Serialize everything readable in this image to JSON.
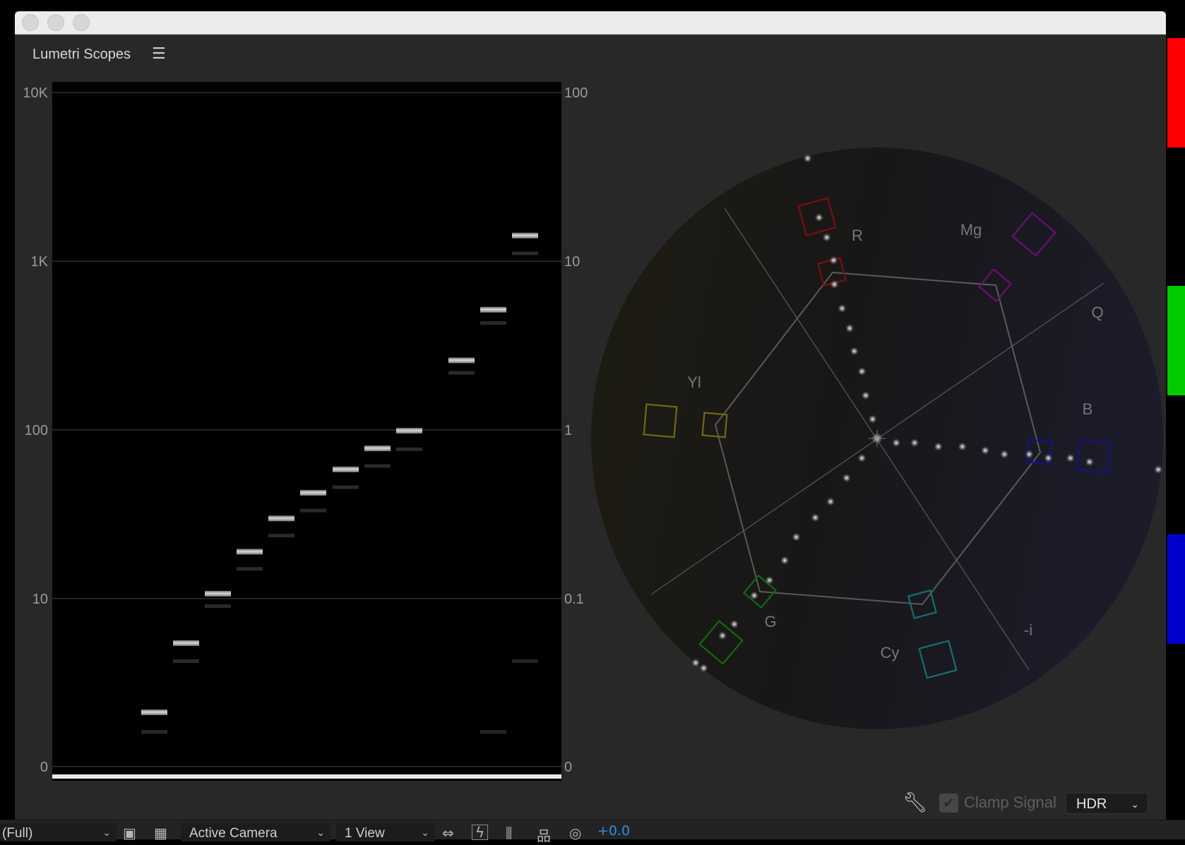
{
  "panel": {
    "title": "Lumetri Scopes",
    "menu_icon": "hamburger-icon"
  },
  "waveform": {
    "left_axis": [
      "10K",
      "1K",
      "100",
      "10",
      "0"
    ],
    "right_axis": [
      "100",
      "10",
      "1",
      "0.1",
      "0"
    ],
    "scale": "log",
    "unit_hint": "nits",
    "steps_primary": [
      2.1,
      5.4,
      10.6,
      18.8,
      29.6,
      42,
      57.8,
      77,
      98,
      256,
      511,
      1406
    ],
    "steps_secondary": [
      1.6,
      4.2,
      8.9,
      14.8,
      23.3,
      32.8,
      45.1,
      60.3,
      75.7,
      215,
      424,
      1097
    ],
    "extra_traces": [
      {
        "step": 10,
        "value": 1.6
      },
      {
        "step": 11,
        "value": 4.2
      }
    ]
  },
  "vectorscope": {
    "labels": {
      "r": "R",
      "mg": "Mg",
      "q": "Q",
      "b": "B",
      "i": "-i",
      "cy": "Cy",
      "g": "G",
      "yl": "Yl"
    },
    "target_colors": {
      "r": "#7a0f0f",
      "mg": "#6a1070",
      "b": "#12128a",
      "cy": "#137070",
      "g": "#106a10",
      "yl": "#6f6a10"
    }
  },
  "color_bars": [
    "#ff0000",
    "#00cc00",
    "#0000cc"
  ],
  "controls": {
    "clamp_signal_label": "Clamp Signal",
    "clamp_signal_checked": true,
    "mode_value": "HDR",
    "settings_icon": "wrench-icon"
  },
  "toolbar": {
    "resolution": "(Full)",
    "camera": "Active Camera",
    "views": "1 View",
    "exposure": "+0.0",
    "exposure_color": "#2d8ceb"
  }
}
